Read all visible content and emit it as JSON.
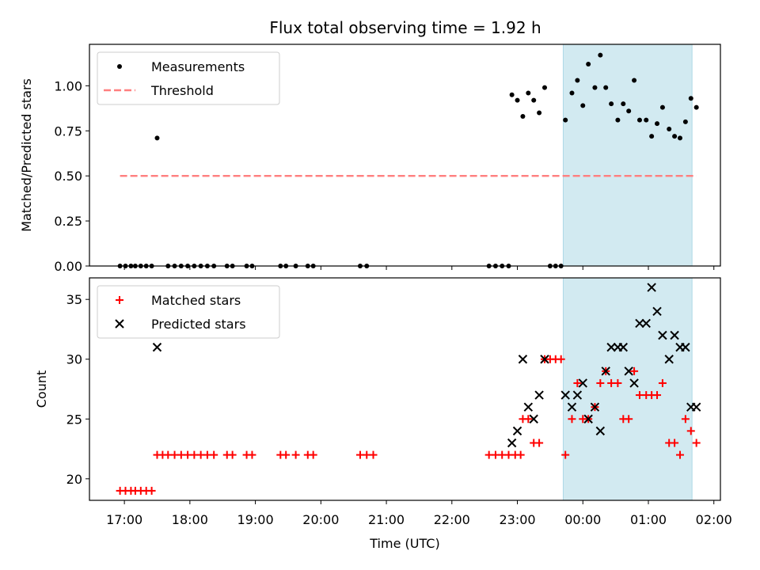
{
  "title": "Flux total observing time = 1.92 h",
  "chart_data": [
    {
      "type": "scatter",
      "ylabel": "Matched/Predicted stars",
      "ylim": [
        0,
        1.23
      ],
      "yticks": [
        "0.00",
        "0.25",
        "0.50",
        "0.75",
        "1.00"
      ],
      "xlim": [
        "16:28",
        "02:06"
      ],
      "shaded_interval": [
        "23:42",
        "01:40"
      ],
      "shade_color": "#add8e6",
      "legend": {
        "position": "top-left",
        "entries": [
          "Measurements",
          "Threshold"
        ]
      },
      "series": [
        {
          "name": "Measurements",
          "marker": "dot",
          "color": "#000000",
          "points": [
            [
              "16:56",
              0
            ],
            [
              "17:01",
              0
            ],
            [
              "17:06",
              0
            ],
            [
              "17:10",
              0
            ],
            [
              "17:15",
              0
            ],
            [
              "17:20",
              0
            ],
            [
              "17:25",
              0
            ],
            [
              "17:30",
              0.71
            ],
            [
              "17:40",
              0
            ],
            [
              "17:46",
              0
            ],
            [
              "17:52",
              0
            ],
            [
              "17:58",
              0
            ],
            [
              "18:04",
              0
            ],
            [
              "18:10",
              0
            ],
            [
              "18:16",
              0
            ],
            [
              "18:22",
              0
            ],
            [
              "18:34",
              0
            ],
            [
              "18:39",
              0
            ],
            [
              "18:52",
              0
            ],
            [
              "18:57",
              0
            ],
            [
              "19:23",
              0
            ],
            [
              "19:28",
              0
            ],
            [
              "19:37",
              0
            ],
            [
              "19:48",
              0
            ],
            [
              "19:53",
              0
            ],
            [
              "20:36",
              0
            ],
            [
              "20:42",
              0
            ],
            [
              "22:34",
              0
            ],
            [
              "22:40",
              0
            ],
            [
              "22:46",
              0
            ],
            [
              "22:52",
              0
            ],
            [
              "22:55",
              0.95
            ],
            [
              "23:00",
              0.92
            ],
            [
              "23:05",
              0.83
            ],
            [
              "23:10",
              0.96
            ],
            [
              "23:15",
              0.92
            ],
            [
              "23:20",
              0.85
            ],
            [
              "23:25",
              0.99
            ],
            [
              "23:30",
              0
            ],
            [
              "23:35",
              0
            ],
            [
              "23:40",
              0
            ],
            [
              "23:44",
              0.81
            ],
            [
              "23:50",
              0.96
            ],
            [
              "23:55",
              1.03
            ],
            [
              "00:00",
              0.89
            ],
            [
              "00:05",
              1.12
            ],
            [
              "00:11",
              0.99
            ],
            [
              "00:16",
              1.17
            ],
            [
              "00:21",
              0.99
            ],
            [
              "00:26",
              0.9
            ],
            [
              "00:32",
              0.81
            ],
            [
              "00:37",
              0.9
            ],
            [
              "00:42",
              0.86
            ],
            [
              "00:47",
              1.03
            ],
            [
              "00:52",
              0.81
            ],
            [
              "00:58",
              0.81
            ],
            [
              "01:03",
              0.72
            ],
            [
              "01:08",
              0.79
            ],
            [
              "01:13",
              0.88
            ],
            [
              "01:19",
              0.76
            ],
            [
              "01:24",
              0.72
            ],
            [
              "01:29",
              0.71
            ],
            [
              "01:34",
              0.8
            ],
            [
              "01:39",
              0.93
            ],
            [
              "01:44",
              0.88
            ]
          ]
        },
        {
          "name": "Threshold",
          "marker": "dashed-line",
          "color": "#ff7f7f",
          "points": [
            [
              "16:56",
              0.5
            ],
            [
              "01:44",
              0.5
            ]
          ]
        }
      ]
    },
    {
      "type": "scatter",
      "ylabel": "Count",
      "xlabel": "Time (UTC)",
      "ylim": [
        18.2,
        36.8
      ],
      "yticks": [
        "20",
        "25",
        "30",
        "35"
      ],
      "xlim": [
        "16:28",
        "02:06"
      ],
      "xticks": [
        "17:00",
        "18:00",
        "19:00",
        "20:00",
        "21:00",
        "22:00",
        "23:00",
        "00:00",
        "01:00",
        "02:00"
      ],
      "shaded_interval": [
        "23:42",
        "01:40"
      ],
      "shade_color": "#add8e6",
      "legend": {
        "position": "top-left",
        "entries": [
          "Matched stars",
          "Predicted stars"
        ]
      },
      "series": [
        {
          "name": "Matched stars",
          "marker": "plus",
          "color": "#ff0000",
          "points": [
            [
              "16:56",
              19
            ],
            [
              "17:01",
              19
            ],
            [
              "17:06",
              19
            ],
            [
              "17:10",
              19
            ],
            [
              "17:15",
              19
            ],
            [
              "17:20",
              19
            ],
            [
              "17:25",
              19
            ],
            [
              "17:30",
              22
            ],
            [
              "17:35",
              22
            ],
            [
              "17:40",
              22
            ],
            [
              "17:46",
              22
            ],
            [
              "17:52",
              22
            ],
            [
              "17:58",
              22
            ],
            [
              "18:04",
              22
            ],
            [
              "18:10",
              22
            ],
            [
              "18:16",
              22
            ],
            [
              "18:22",
              22
            ],
            [
              "18:34",
              22
            ],
            [
              "18:39",
              22
            ],
            [
              "18:52",
              22
            ],
            [
              "18:57",
              22
            ],
            [
              "19:23",
              22
            ],
            [
              "19:28",
              22
            ],
            [
              "19:37",
              22
            ],
            [
              "19:48",
              22
            ],
            [
              "19:53",
              22
            ],
            [
              "20:36",
              22
            ],
            [
              "20:42",
              22
            ],
            [
              "20:48",
              22
            ],
            [
              "22:34",
              22
            ],
            [
              "22:40",
              22
            ],
            [
              "22:46",
              22
            ],
            [
              "22:52",
              22
            ],
            [
              "22:58",
              22
            ],
            [
              "23:03",
              22
            ],
            [
              "23:05",
              25
            ],
            [
              "23:10",
              25
            ],
            [
              "23:15",
              23
            ],
            [
              "23:20",
              23
            ],
            [
              "23:25",
              30
            ],
            [
              "23:30",
              30
            ],
            [
              "23:35",
              30
            ],
            [
              "23:40",
              30
            ],
            [
              "23:44",
              22
            ],
            [
              "23:50",
              25
            ],
            [
              "23:55",
              28
            ],
            [
              "24:00",
              25
            ],
            [
              "24:05",
              25
            ],
            [
              "24:11",
              26
            ],
            [
              "24:16",
              28
            ],
            [
              "24:21",
              29
            ],
            [
              "24:26",
              28
            ],
            [
              "24:32",
              28
            ],
            [
              "24:37",
              25
            ],
            [
              "24:42",
              25
            ],
            [
              "24:47",
              29
            ],
            [
              "24:52",
              27
            ],
            [
              "24:58",
              27
            ],
            [
              "25:03",
              27
            ],
            [
              "25:08",
              27
            ],
            [
              "25:13",
              28
            ],
            [
              "25:19",
              23
            ],
            [
              "25:24",
              23
            ],
            [
              "25:29",
              22
            ],
            [
              "25:34",
              25
            ],
            [
              "25:39",
              24
            ],
            [
              "25:44",
              23
            ]
          ]
        },
        {
          "name": "Predicted stars",
          "marker": "x",
          "color": "#000000",
          "points": [
            [
              "17:30",
              31
            ],
            [
              "22:55",
              23
            ],
            [
              "23:00",
              24
            ],
            [
              "23:05",
              30
            ],
            [
              "23:10",
              26
            ],
            [
              "23:15",
              25
            ],
            [
              "23:20",
              27
            ],
            [
              "23:25",
              30
            ],
            [
              "23:44",
              27
            ],
            [
              "23:50",
              26
            ],
            [
              "23:55",
              27
            ],
            [
              "00:00",
              28
            ],
            [
              "00:05",
              25
            ],
            [
              "00:11",
              26
            ],
            [
              "00:16",
              24
            ],
            [
              "00:21",
              29
            ],
            [
              "00:26",
              31
            ],
            [
              "00:32",
              31
            ],
            [
              "00:37",
              31
            ],
            [
              "00:42",
              29
            ],
            [
              "00:47",
              28
            ],
            [
              "00:52",
              33
            ],
            [
              "00:58",
              33
            ],
            [
              "01:03",
              36
            ],
            [
              "01:08",
              34
            ],
            [
              "01:13",
              32
            ],
            [
              "01:19",
              30
            ],
            [
              "01:24",
              32
            ],
            [
              "01:29",
              31
            ],
            [
              "01:34",
              31
            ],
            [
              "01:39",
              26
            ],
            [
              "01:44",
              26
            ]
          ]
        }
      ]
    }
  ],
  "colors": {
    "shade": "#add8e6",
    "threshold": "#ff7f7f",
    "matched": "#ff0000",
    "predicted": "#000000"
  }
}
